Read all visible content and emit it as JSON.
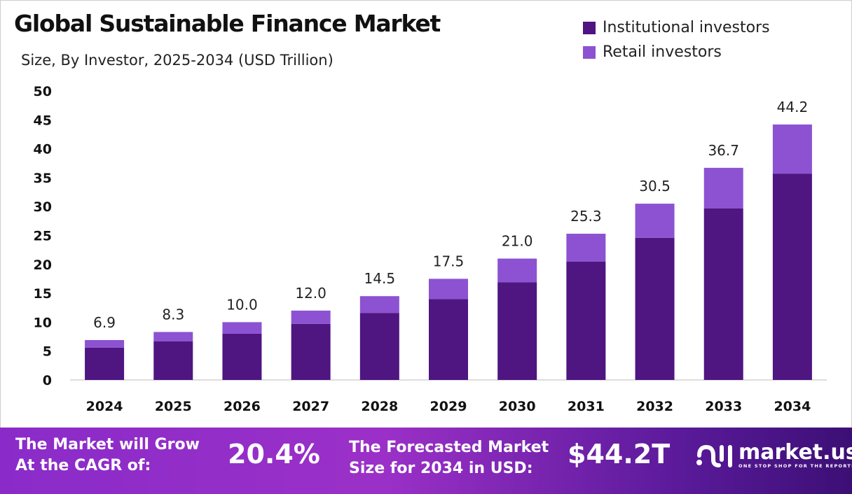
{
  "title": "Global Sustainable Finance Market",
  "subtitle": "Size, By Investor, 2025-2034 (USD Trillion)",
  "colors": {
    "institutional": "#4f1580",
    "retail": "#8c52d2"
  },
  "chart_data": {
    "type": "bar",
    "stacked": true,
    "title": "Global Sustainable Finance Market",
    "subtitle": "Size, By Investor, 2025-2034 (USD Trillion)",
    "categories": [
      "2024",
      "2025",
      "2026",
      "2027",
      "2028",
      "2029",
      "2030",
      "2031",
      "2032",
      "2033",
      "2034"
    ],
    "series": [
      {
        "name": "Institutional investors",
        "values": [
          5.6,
          6.7,
          8.0,
          9.7,
          11.6,
          14.0,
          16.9,
          20.5,
          24.6,
          29.7,
          35.7
        ]
      },
      {
        "name": "Retail investors",
        "values": [
          1.3,
          1.6,
          2.0,
          2.3,
          2.9,
          3.5,
          4.1,
          4.8,
          5.9,
          7.0,
          8.5
        ]
      }
    ],
    "totals": [
      "6.9",
      "8.3",
      "10.0",
      "12.0",
      "14.5",
      "17.5",
      "21.0",
      "25.3",
      "30.5",
      "36.7",
      "44.2"
    ],
    "ylim": [
      0,
      50
    ],
    "yticks": [
      "0",
      "5",
      "10",
      "15",
      "20",
      "25",
      "30",
      "35",
      "40",
      "45",
      "50"
    ],
    "grid": false,
    "legend": "top-right"
  },
  "footer": {
    "cagr_label": "The Market will Grow At the CAGR of:",
    "cagr_value": "20.4%",
    "forecast_label": "The Forecasted Market Size for 2034 in USD:",
    "forecast_value": "$44.2T",
    "logo_name": "market.us",
    "logo_tagline": "ONE STOP SHOP FOR THE REPORTS"
  }
}
